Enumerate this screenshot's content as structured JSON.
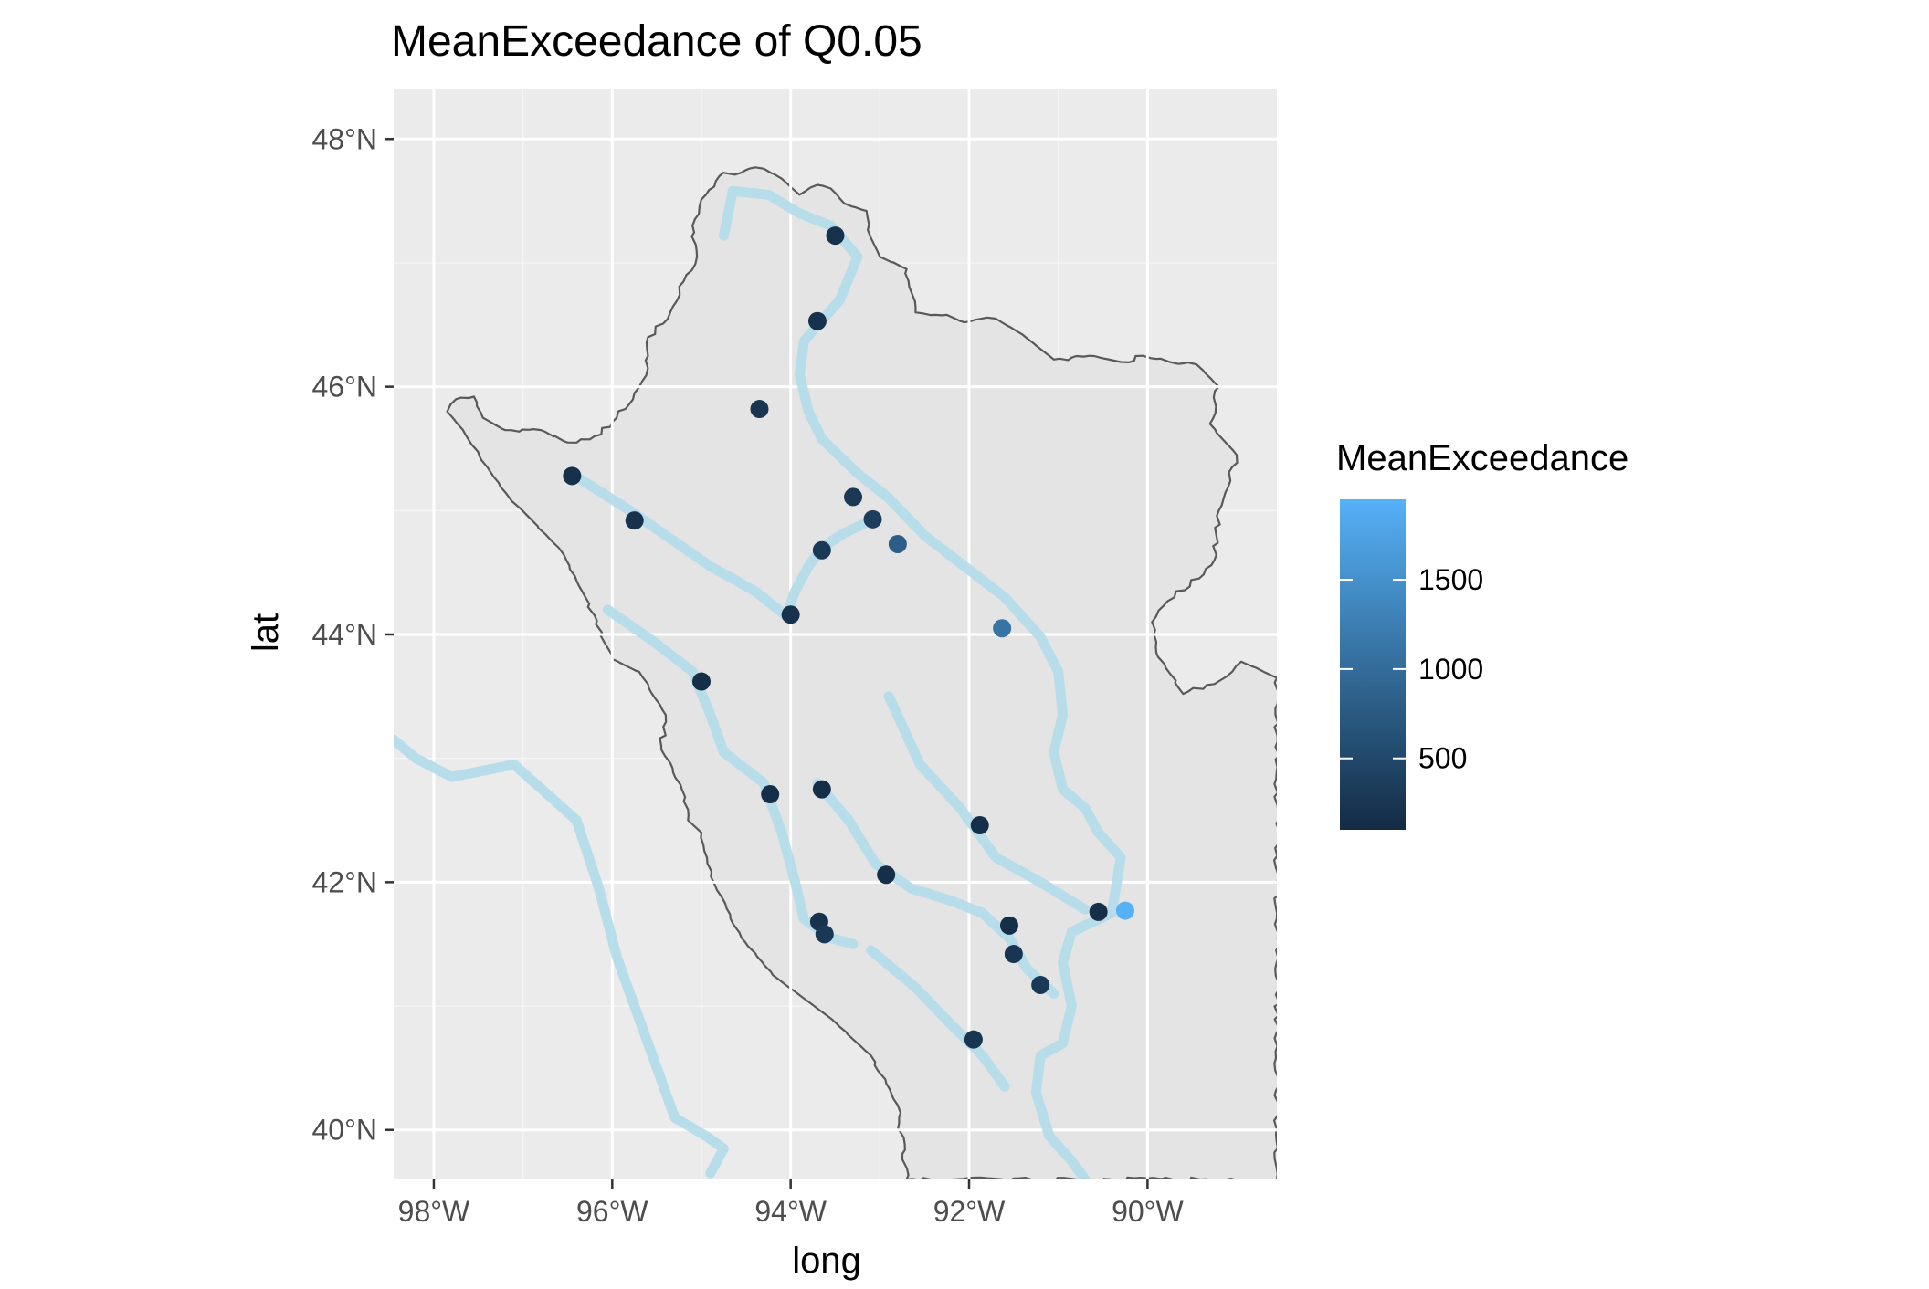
{
  "chart_data": {
    "type": "scatter",
    "title": "MeanExceedance of Q0.05",
    "xlabel": "long",
    "ylabel": "lat",
    "xlim": [
      -98.45,
      -88.55
    ],
    "ylim": [
      39.6,
      48.4
    ],
    "x_ticks": [
      -98,
      -96,
      -94,
      -92,
      -90
    ],
    "x_tick_labels": [
      "98°W",
      "96°W",
      "94°W",
      "92°W",
      "90°W"
    ],
    "y_ticks": [
      40,
      42,
      44,
      46,
      48
    ],
    "y_tick_labels": [
      "40°N",
      "42°N",
      "44°N",
      "46°N",
      "48°N"
    ],
    "grid": true,
    "panel_background": "#ebebeb",
    "region_fill": "#e4e4e4",
    "region_outline_color": "#595959",
    "river_color": "#b3dbea",
    "legend": {
      "title": "MeanExceedance",
      "position": "right",
      "ticks": [
        500,
        1000,
        1500
      ],
      "tick_labels": [
        "500",
        "1000",
        "1500"
      ],
      "range": [
        100,
        1950
      ],
      "color_low": "#132b43",
      "color_high": "#56b1f7"
    },
    "points": [
      {
        "long": -93.5,
        "lat": 47.22,
        "value": 200
      },
      {
        "long": -93.7,
        "lat": 46.53,
        "value": 200
      },
      {
        "long": -94.35,
        "lat": 45.82,
        "value": 250
      },
      {
        "long": -96.45,
        "lat": 45.28,
        "value": 180
      },
      {
        "long": -95.75,
        "lat": 44.92,
        "value": 200
      },
      {
        "long": -93.3,
        "lat": 45.11,
        "value": 300
      },
      {
        "long": -93.08,
        "lat": 44.93,
        "value": 350
      },
      {
        "long": -92.8,
        "lat": 44.73,
        "value": 800
      },
      {
        "long": -93.65,
        "lat": 44.68,
        "value": 300
      },
      {
        "long": -94.0,
        "lat": 44.16,
        "value": 200
      },
      {
        "long": -91.63,
        "lat": 44.05,
        "value": 1100
      },
      {
        "long": -95.0,
        "lat": 43.62,
        "value": 150
      },
      {
        "long": -94.23,
        "lat": 42.71,
        "value": 150
      },
      {
        "long": -93.65,
        "lat": 42.75,
        "value": 150
      },
      {
        "long": -91.88,
        "lat": 42.46,
        "value": 150
      },
      {
        "long": -92.93,
        "lat": 42.06,
        "value": 150
      },
      {
        "long": -90.55,
        "lat": 41.76,
        "value": 150
      },
      {
        "long": -90.25,
        "lat": 41.77,
        "value": 1950
      },
      {
        "long": -93.68,
        "lat": 41.68,
        "value": 200
      },
      {
        "long": -93.62,
        "lat": 41.58,
        "value": 300
      },
      {
        "long": -91.55,
        "lat": 41.65,
        "value": 150
      },
      {
        "long": -91.5,
        "lat": 41.42,
        "value": 250
      },
      {
        "long": -91.2,
        "lat": 41.17,
        "value": 300
      },
      {
        "long": -91.95,
        "lat": 40.73,
        "value": 250
      }
    ],
    "region_outline": [
      [
        -94.5,
        47.75
      ],
      [
        -94.3,
        47.76
      ],
      [
        -94.1,
        47.68
      ],
      [
        -93.9,
        47.55
      ],
      [
        -93.7,
        47.63
      ],
      [
        -93.55,
        47.6
      ],
      [
        -93.4,
        47.48
      ],
      [
        -93.15,
        47.42
      ],
      [
        -93.1,
        47.2
      ],
      [
        -93.0,
        47.05
      ],
      [
        -92.7,
        46.95
      ],
      [
        -92.6,
        46.6
      ],
      [
        -92.25,
        46.58
      ],
      [
        -92.05,
        46.52
      ],
      [
        -91.7,
        46.55
      ],
      [
        -91.4,
        46.42
      ],
      [
        -91.05,
        46.22
      ],
      [
        -90.65,
        46.25
      ],
      [
        -90.3,
        46.2
      ],
      [
        -90.05,
        46.25
      ],
      [
        -89.75,
        46.2
      ],
      [
        -89.45,
        46.18
      ],
      [
        -89.2,
        46.0
      ],
      [
        -89.3,
        45.7
      ],
      [
        -89.0,
        45.45
      ],
      [
        -89.2,
        45.0
      ],
      [
        -89.25,
        44.6
      ],
      [
        -89.7,
        44.3
      ],
      [
        -89.95,
        44.1
      ],
      [
        -89.9,
        43.85
      ],
      [
        -89.6,
        43.52
      ],
      [
        -89.25,
        43.6
      ],
      [
        -89.05,
        43.7
      ],
      [
        -88.95,
        43.78
      ],
      [
        -88.7,
        43.7
      ],
      [
        -88.55,
        43.65
      ],
      [
        -88.55,
        39.6
      ],
      [
        -92.7,
        39.6
      ],
      [
        -92.8,
        40.2
      ],
      [
        -93.1,
        40.6
      ],
      [
        -93.55,
        40.9
      ],
      [
        -94.2,
        41.25
      ],
      [
        -94.55,
        41.55
      ],
      [
        -94.85,
        41.98
      ],
      [
        -95.0,
        42.4
      ],
      [
        -95.15,
        42.5
      ],
      [
        -95.22,
        42.75
      ],
      [
        -95.45,
        43.1
      ],
      [
        -95.4,
        43.35
      ],
      [
        -95.7,
        43.7
      ],
      [
        -96.0,
        43.8
      ],
      [
        -96.3,
        44.3
      ],
      [
        -96.6,
        44.7
      ],
      [
        -97.15,
        45.1
      ],
      [
        -97.4,
        45.35
      ],
      [
        -97.65,
        45.62
      ],
      [
        -97.85,
        45.8
      ],
      [
        -97.75,
        45.9
      ],
      [
        -97.55,
        45.92
      ],
      [
        -97.45,
        45.75
      ],
      [
        -97.2,
        45.65
      ],
      [
        -96.8,
        45.65
      ],
      [
        -96.5,
        45.55
      ],
      [
        -96.2,
        45.6
      ],
      [
        -95.95,
        45.75
      ],
      [
        -95.75,
        45.95
      ],
      [
        -95.6,
        46.15
      ],
      [
        -95.6,
        46.4
      ],
      [
        -95.35,
        46.6
      ],
      [
        -95.2,
        46.85
      ],
      [
        -95.05,
        47.05
      ],
      [
        -95.1,
        47.3
      ],
      [
        -94.95,
        47.55
      ],
      [
        -94.8,
        47.7
      ],
      [
        -94.5,
        47.75
      ]
    ],
    "rivers": [
      [
        [
          -94.75,
          47.22
        ],
        [
          -94.65,
          47.58
        ],
        [
          -94.25,
          47.55
        ],
        [
          -93.9,
          47.4
        ],
        [
          -93.55,
          47.3
        ],
        [
          -93.25,
          47.05
        ],
        [
          -93.45,
          46.7
        ],
        [
          -93.85,
          46.37
        ],
        [
          -93.9,
          46.1
        ],
        [
          -93.8,
          45.8
        ],
        [
          -93.65,
          45.58
        ],
        [
          -93.25,
          45.3
        ],
        [
          -92.9,
          45.1
        ],
        [
          -92.5,
          44.8
        ],
        [
          -92.05,
          44.55
        ],
        [
          -91.6,
          44.3
        ],
        [
          -91.2,
          43.98
        ],
        [
          -91.0,
          43.7
        ],
        [
          -90.95,
          43.35
        ],
        [
          -91.05,
          43.05
        ],
        [
          -90.95,
          42.75
        ],
        [
          -90.7,
          42.6
        ],
        [
          -90.55,
          42.4
        ],
        [
          -90.3,
          42.2
        ],
        [
          -90.4,
          41.75
        ],
        [
          -90.85,
          41.6
        ],
        [
          -90.95,
          41.35
        ],
        [
          -90.85,
          41.0
        ],
        [
          -90.95,
          40.7
        ],
        [
          -91.2,
          40.6
        ],
        [
          -91.25,
          40.3
        ],
        [
          -91.1,
          39.95
        ],
        [
          -90.85,
          39.75
        ],
        [
          -90.7,
          39.6
        ]
      ],
      [
        [
          -96.35,
          45.25
        ],
        [
          -95.8,
          45.0
        ],
        [
          -95.3,
          44.75
        ],
        [
          -94.9,
          44.55
        ],
        [
          -94.4,
          44.35
        ],
        [
          -94.05,
          44.15
        ],
        [
          -93.95,
          44.35
        ],
        [
          -93.8,
          44.55
        ],
        [
          -93.65,
          44.7
        ],
        [
          -93.4,
          44.82
        ],
        [
          -93.1,
          44.92
        ]
      ],
      [
        [
          -96.05,
          44.2
        ],
        [
          -95.55,
          43.95
        ],
        [
          -95.1,
          43.7
        ],
        [
          -94.9,
          43.35
        ],
        [
          -94.75,
          43.05
        ],
        [
          -94.3,
          42.8
        ],
        [
          -94.1,
          42.4
        ],
        [
          -93.95,
          42.0
        ],
        [
          -93.85,
          41.7
        ],
        [
          -93.55,
          41.55
        ],
        [
          -93.3,
          41.5
        ]
      ],
      [
        [
          -93.7,
          42.8
        ],
        [
          -93.35,
          42.5
        ],
        [
          -93.05,
          42.15
        ],
        [
          -92.65,
          41.95
        ],
        [
          -92.2,
          41.85
        ],
        [
          -91.85,
          41.75
        ],
        [
          -91.55,
          41.55
        ],
        [
          -91.35,
          41.3
        ],
        [
          -91.05,
          41.1
        ]
      ],
      [
        [
          -92.9,
          43.5
        ],
        [
          -92.55,
          42.95
        ],
        [
          -92.1,
          42.6
        ],
        [
          -91.7,
          42.2
        ],
        [
          -91.2,
          42.0
        ],
        [
          -90.7,
          41.78
        ]
      ],
      [
        [
          -93.1,
          41.45
        ],
        [
          -92.6,
          41.15
        ],
        [
          -92.2,
          40.85
        ],
        [
          -91.85,
          40.6
        ],
        [
          -91.6,
          40.35
        ]
      ],
      [
        [
          -98.45,
          43.15
        ],
        [
          -98.2,
          43.0
        ],
        [
          -97.8,
          42.85
        ],
        [
          -97.1,
          42.95
        ],
        [
          -96.4,
          42.5
        ],
        [
          -96.15,
          41.95
        ],
        [
          -95.95,
          41.4
        ],
        [
          -95.8,
          41.1
        ],
        [
          -95.55,
          40.6
        ],
        [
          -95.3,
          40.1
        ],
        [
          -94.95,
          39.95
        ],
        [
          -94.75,
          39.85
        ],
        [
          -94.9,
          39.65
        ]
      ]
    ]
  }
}
